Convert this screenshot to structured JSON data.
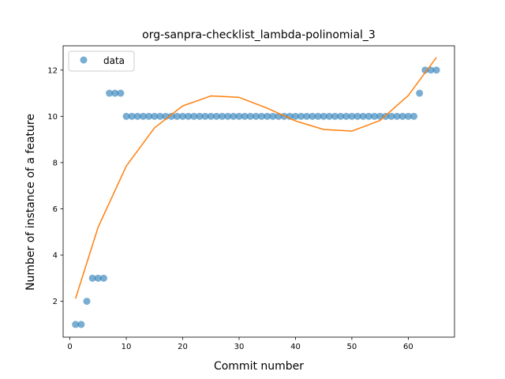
{
  "chart_data": {
    "type": "scatter",
    "title": "org-sanpra-checklist_lambda-polinomial_3",
    "xlabel": "Commit number",
    "ylabel": "Number of instance of a feature",
    "xlim": [
      -1.2,
      68.2
    ],
    "ylim": [
      0.45,
      13.05
    ],
    "xticks": [
      0,
      10,
      20,
      30,
      40,
      50,
      60
    ],
    "yticks": [
      2,
      4,
      6,
      8,
      10,
      12
    ],
    "grid": false,
    "legend": {
      "position": "top-left",
      "entries": [
        "data"
      ]
    },
    "colors": {
      "data": "#1f77b4",
      "fit": "#ff7f0e"
    },
    "series": [
      {
        "name": "data",
        "kind": "scatter",
        "x": [
          1,
          2,
          3,
          4,
          5,
          6,
          7,
          8,
          9,
          10,
          11,
          12,
          13,
          14,
          15,
          16,
          17,
          18,
          19,
          20,
          21,
          22,
          23,
          24,
          25,
          26,
          27,
          28,
          29,
          30,
          31,
          32,
          33,
          34,
          35,
          36,
          37,
          38,
          39,
          40,
          41,
          42,
          43,
          44,
          45,
          46,
          47,
          48,
          49,
          50,
          51,
          52,
          53,
          54,
          55,
          56,
          57,
          58,
          59,
          60,
          61,
          62,
          63,
          64,
          65
        ],
        "y": [
          1,
          1,
          2,
          3,
          3,
          3,
          11,
          11,
          11,
          10,
          10,
          10,
          10,
          10,
          10,
          10,
          10,
          10,
          10,
          10,
          10,
          10,
          10,
          10,
          10,
          10,
          10,
          10,
          10,
          10,
          10,
          10,
          10,
          10,
          10,
          10,
          10,
          10,
          10,
          10,
          10,
          10,
          10,
          10,
          10,
          10,
          10,
          10,
          10,
          10,
          10,
          10,
          10,
          10,
          10,
          10,
          10,
          10,
          10,
          10,
          10,
          11,
          12,
          12,
          12
        ]
      },
      {
        "kind": "line",
        "x": [
          1,
          5,
          10,
          15,
          20,
          25,
          30,
          35,
          40,
          45,
          50,
          55,
          60,
          65
        ],
        "y": [
          2.12,
          5.2,
          7.85,
          9.5,
          10.45,
          10.88,
          10.82,
          10.35,
          9.8,
          9.43,
          9.36,
          9.82,
          10.9,
          12.55
        ]
      }
    ]
  }
}
